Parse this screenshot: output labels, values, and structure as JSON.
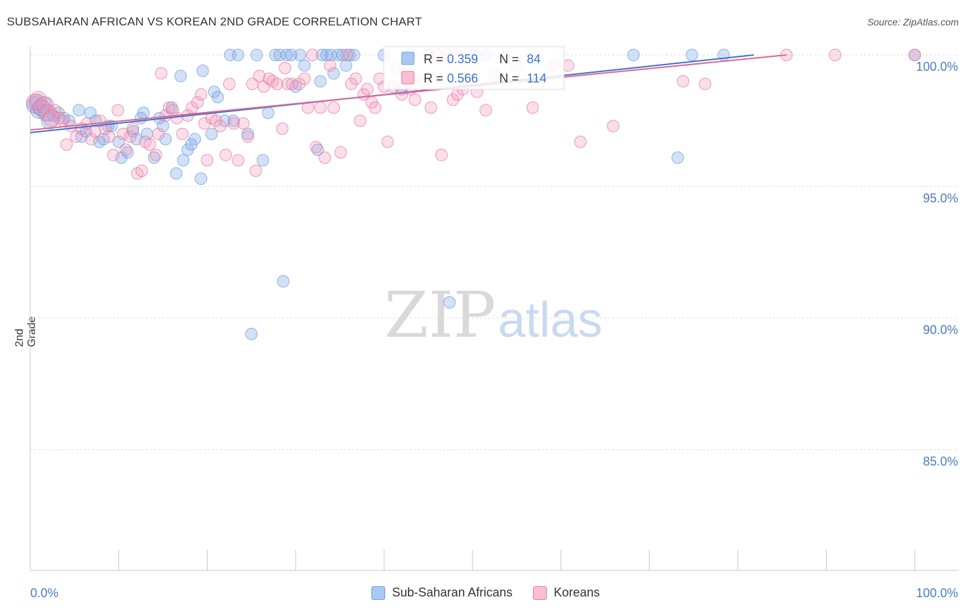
{
  "header": {
    "title": "SUBSAHARAN AFRICAN VS KOREAN 2ND GRADE CORRELATION CHART",
    "source": "Source: ZipAtlas.com"
  },
  "watermark": {
    "zip": "ZIP",
    "atlas": "atlas"
  },
  "legend": {
    "items": [
      {
        "label": "Sub-Saharan Africans",
        "color": "#6f9fe0",
        "fill": "#aac8f2"
      },
      {
        "label": "Koreans",
        "color": "#e87aa0",
        "fill": "#f7bfd0"
      }
    ]
  },
  "stats": {
    "rows": [
      {
        "r_label": "R =",
        "r_value": "0.359",
        "n_label": "N =",
        "n_value": "84"
      },
      {
        "r_label": "R =",
        "r_value": "0.566",
        "n_label": "N =",
        "n_value": "114"
      }
    ]
  },
  "chart_data": {
    "type": "scatter",
    "title": "SUBSAHARAN AFRICAN VS KOREAN 2ND GRADE CORRELATION CHART",
    "xlabel": "",
    "ylabel": "2nd Grade",
    "x_tick_labels": [
      "0.0%",
      "100.0%"
    ],
    "y_tick_labels": [
      "100.0%",
      "95.0%",
      "90.0%",
      "85.0%"
    ],
    "y_ticks": [
      100,
      95,
      90,
      85
    ],
    "xlim": [
      0,
      100
    ],
    "ylim": [
      80.5,
      100.3
    ],
    "grid": true,
    "series": [
      {
        "name": "Sub-Saharan Africans",
        "color": "#6f9fe0",
        "trend": {
          "x": [
            0,
            81.8
          ],
          "y": [
            97.05,
            100.0
          ]
        },
        "points": [
          [
            0.5,
            98.1
          ],
          [
            0.8,
            98.2
          ],
          [
            1.0,
            97.9
          ],
          [
            1.2,
            98.0
          ],
          [
            1.5,
            98.1
          ],
          [
            1.8,
            97.8
          ],
          [
            2.2,
            97.5
          ],
          [
            2.6,
            97.7
          ],
          [
            3.2,
            97.8
          ],
          [
            3.8,
            97.6
          ],
          [
            4.4,
            97.5
          ],
          [
            5.5,
            97.9
          ],
          [
            5.8,
            96.9
          ],
          [
            6.3,
            97.1
          ],
          [
            6.8,
            97.8
          ],
          [
            7.4,
            97.5
          ],
          [
            7.8,
            96.7
          ],
          [
            8.3,
            96.8
          ],
          [
            8.8,
            97.3
          ],
          [
            9.2,
            97.3
          ],
          [
            10.0,
            96.7
          ],
          [
            10.3,
            96.1
          ],
          [
            11.0,
            96.3
          ],
          [
            11.6,
            97.1
          ],
          [
            12.0,
            96.8
          ],
          [
            12.5,
            97.6
          ],
          [
            12.8,
            97.8
          ],
          [
            13.2,
            97.0
          ],
          [
            14.0,
            96.1
          ],
          [
            14.6,
            97.6
          ],
          [
            15.0,
            97.3
          ],
          [
            15.3,
            96.8
          ],
          [
            16.0,
            98.0
          ],
          [
            16.5,
            95.5
          ],
          [
            17.0,
            99.2
          ],
          [
            17.3,
            96.0
          ],
          [
            17.8,
            96.4
          ],
          [
            18.2,
            96.6
          ],
          [
            18.6,
            96.8
          ],
          [
            19.3,
            95.3
          ],
          [
            19.5,
            99.4
          ],
          [
            20.5,
            97.0
          ],
          [
            20.8,
            98.6
          ],
          [
            21.2,
            98.4
          ],
          [
            22.0,
            97.5
          ],
          [
            22.6,
            100.0
          ],
          [
            23.0,
            97.5
          ],
          [
            23.5,
            100.0
          ],
          [
            24.6,
            97.0
          ],
          [
            25.0,
            89.4
          ],
          [
            25.6,
            100.0
          ],
          [
            26.3,
            96.0
          ],
          [
            26.9,
            97.8
          ],
          [
            27.7,
            100.0
          ],
          [
            28.2,
            100.0
          ],
          [
            28.6,
            91.4
          ],
          [
            29.0,
            100.0
          ],
          [
            29.5,
            100.0
          ],
          [
            30.0,
            98.8
          ],
          [
            30.5,
            100.0
          ],
          [
            31.0,
            99.6
          ],
          [
            32.5,
            96.4
          ],
          [
            32.8,
            99.0
          ],
          [
            33.0,
            100.0
          ],
          [
            33.5,
            100.0
          ],
          [
            34.0,
            100.0
          ],
          [
            34.3,
            99.3
          ],
          [
            34.8,
            100.0
          ],
          [
            35.3,
            100.0
          ],
          [
            35.7,
            99.6
          ],
          [
            36.1,
            100.0
          ],
          [
            36.6,
            100.0
          ],
          [
            40.0,
            100.0
          ],
          [
            42.0,
            98.7
          ],
          [
            43.0,
            100.0
          ],
          [
            45.0,
            100.0
          ],
          [
            47.4,
            90.6
          ],
          [
            50.0,
            100.0
          ],
          [
            51.5,
            100.0
          ],
          [
            68.2,
            100.0
          ],
          [
            73.2,
            96.1
          ],
          [
            74.8,
            100.0
          ],
          [
            78.4,
            100.0
          ],
          [
            100.0,
            100.0
          ]
        ]
      },
      {
        "name": "Koreans",
        "color": "#e87aa0",
        "trend": {
          "x": [
            0,
            85.5
          ],
          "y": [
            97.15,
            100.0
          ]
        },
        "points": [
          [
            0.5,
            98.2
          ],
          [
            0.9,
            98.3
          ],
          [
            1.3,
            98.0
          ],
          [
            1.7,
            98.1
          ],
          [
            2.0,
            97.8
          ],
          [
            2.4,
            97.6
          ],
          [
            2.8,
            97.9
          ],
          [
            3.3,
            97.6
          ],
          [
            3.7,
            97.5
          ],
          [
            4.1,
            96.6
          ],
          [
            4.6,
            97.3
          ],
          [
            5.2,
            96.9
          ],
          [
            5.8,
            97.2
          ],
          [
            6.4,
            97.4
          ],
          [
            6.9,
            96.8
          ],
          [
            7.3,
            97.1
          ],
          [
            7.9,
            97.5
          ],
          [
            8.5,
            97.2
          ],
          [
            8.9,
            96.9
          ],
          [
            9.4,
            96.2
          ],
          [
            9.9,
            97.9
          ],
          [
            10.5,
            97.0
          ],
          [
            10.8,
            96.4
          ],
          [
            11.3,
            96.9
          ],
          [
            11.6,
            97.2
          ],
          [
            12.1,
            95.5
          ],
          [
            12.6,
            95.6
          ],
          [
            13.0,
            96.7
          ],
          [
            13.5,
            96.6
          ],
          [
            14.2,
            96.2
          ],
          [
            14.5,
            97.0
          ],
          [
            14.8,
            99.3
          ],
          [
            15.3,
            97.7
          ],
          [
            15.7,
            98.0
          ],
          [
            16.1,
            97.9
          ],
          [
            16.6,
            97.6
          ],
          [
            17.2,
            97.0
          ],
          [
            17.8,
            97.7
          ],
          [
            18.3,
            98.0
          ],
          [
            18.9,
            98.2
          ],
          [
            19.3,
            98.5
          ],
          [
            19.7,
            97.4
          ],
          [
            20.0,
            96.0
          ],
          [
            20.5,
            97.6
          ],
          [
            21.0,
            97.5
          ],
          [
            21.5,
            97.3
          ],
          [
            22.1,
            96.2
          ],
          [
            22.5,
            98.9
          ],
          [
            23.0,
            97.4
          ],
          [
            23.5,
            96.0
          ],
          [
            24.1,
            97.4
          ],
          [
            24.6,
            96.9
          ],
          [
            25.1,
            98.9
          ],
          [
            25.5,
            95.6
          ],
          [
            25.9,
            99.2
          ],
          [
            26.4,
            98.8
          ],
          [
            27.0,
            99.1
          ],
          [
            27.4,
            99.0
          ],
          [
            27.9,
            98.9
          ],
          [
            28.5,
            97.2
          ],
          [
            28.8,
            99.5
          ],
          [
            29.1,
            98.9
          ],
          [
            29.6,
            98.9
          ],
          [
            30.4,
            98.9
          ],
          [
            31.0,
            99.1
          ],
          [
            31.4,
            98.0
          ],
          [
            31.9,
            100.0
          ],
          [
            32.3,
            96.5
          ],
          [
            32.8,
            98.0
          ],
          [
            33.3,
            96.1
          ],
          [
            33.9,
            99.6
          ],
          [
            34.3,
            98.0
          ],
          [
            35.1,
            96.3
          ],
          [
            35.8,
            100.0
          ],
          [
            36.3,
            98.9
          ],
          [
            36.8,
            99.1
          ],
          [
            37.3,
            97.5
          ],
          [
            37.7,
            98.5
          ],
          [
            38.1,
            98.7
          ],
          [
            38.6,
            98.2
          ],
          [
            39.0,
            98.0
          ],
          [
            39.5,
            99.1
          ],
          [
            40.0,
            98.8
          ],
          [
            40.4,
            96.7
          ],
          [
            41.0,
            98.8
          ],
          [
            41.5,
            99.5
          ],
          [
            42.0,
            98.5
          ],
          [
            42.6,
            99.3
          ],
          [
            43.0,
            98.7
          ],
          [
            43.5,
            98.3
          ],
          [
            44.4,
            99.0
          ],
          [
            45.3,
            98.0
          ],
          [
            46.0,
            100.0
          ],
          [
            46.5,
            96.2
          ],
          [
            47.2,
            100.0
          ],
          [
            47.8,
            98.3
          ],
          [
            48.3,
            98.5
          ],
          [
            48.9,
            98.7
          ],
          [
            49.6,
            99.1
          ],
          [
            50.5,
            98.6
          ],
          [
            51.5,
            97.9
          ],
          [
            52.5,
            99.2
          ],
          [
            53.6,
            99.9
          ],
          [
            55.0,
            99.6
          ],
          [
            56.8,
            98.0
          ],
          [
            59.2,
            99.6
          ],
          [
            60.8,
            99.6
          ],
          [
            62.2,
            96.7
          ],
          [
            65.9,
            97.3
          ],
          [
            73.8,
            99.0
          ],
          [
            76.3,
            98.9
          ],
          [
            85.5,
            100.0
          ],
          [
            91.0,
            100.0
          ],
          [
            100.0,
            100.0
          ]
        ]
      }
    ]
  }
}
